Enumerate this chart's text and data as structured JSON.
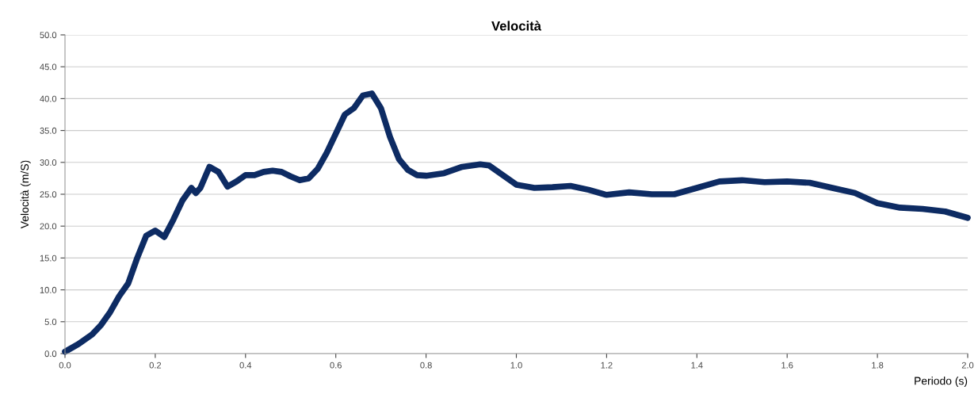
{
  "chart_data": {
    "type": "line",
    "title": "Velocità",
    "xlabel": "Periodo (s)",
    "ylabel": "Velocità (m/S)",
    "xlim": [
      0,
      2
    ],
    "ylim": [
      0,
      50
    ],
    "xticks": [
      {
        "value": 0,
        "label": "0.0"
      },
      {
        "value": 0.2,
        "label": "0.2"
      },
      {
        "value": 0.4,
        "label": "0.4"
      },
      {
        "value": 0.6,
        "label": "0.6"
      },
      {
        "value": 0.8,
        "label": "0.8"
      },
      {
        "value": 1.0,
        "label": "1.0"
      },
      {
        "value": 1.2,
        "label": "1.2"
      },
      {
        "value": 1.4,
        "label": "1.4"
      },
      {
        "value": 1.6,
        "label": "1.6"
      },
      {
        "value": 1.8,
        "label": "1.8"
      },
      {
        "value": 2.0,
        "label": "2.0"
      }
    ],
    "yticks": [
      {
        "value": 0,
        "label": "0.0"
      },
      {
        "value": 5,
        "label": "5.0"
      },
      {
        "value": 10,
        "label": "10.0"
      },
      {
        "value": 15,
        "label": "15.0"
      },
      {
        "value": 20,
        "label": "20.0"
      },
      {
        "value": 25,
        "label": "25.0"
      },
      {
        "value": 30,
        "label": "30.0"
      },
      {
        "value": 35,
        "label": "35.0"
      },
      {
        "value": 40,
        "label": "40.0"
      },
      {
        "value": 45,
        "label": "45.0"
      },
      {
        "value": 50,
        "label": "50.0"
      }
    ],
    "grid": "y",
    "marker": "none",
    "line_style": "solid",
    "series": [
      {
        "color": "#0d2b63",
        "x": [
          0,
          0.03,
          0.06,
          0.08,
          0.1,
          0.12,
          0.14,
          0.16,
          0.18,
          0.2,
          0.22,
          0.24,
          0.26,
          0.28,
          0.29,
          0.3,
          0.32,
          0.34,
          0.36,
          0.38,
          0.4,
          0.42,
          0.44,
          0.46,
          0.48,
          0.5,
          0.52,
          0.54,
          0.56,
          0.58,
          0.6,
          0.62,
          0.64,
          0.66,
          0.68,
          0.7,
          0.72,
          0.74,
          0.76,
          0.78,
          0.8,
          0.84,
          0.88,
          0.92,
          0.94,
          0.96,
          1.0,
          1.04,
          1.08,
          1.12,
          1.16,
          1.2,
          1.25,
          1.3,
          1.35,
          1.4,
          1.45,
          1.5,
          1.55,
          1.6,
          1.65,
          1.7,
          1.75,
          1.8,
          1.85,
          1.9,
          1.95,
          2.0
        ],
        "values": [
          0.3,
          1.5,
          3,
          4.5,
          6.5,
          9,
          11,
          15,
          18.5,
          19.3,
          18.3,
          21,
          24,
          26,
          25.2,
          26,
          29.3,
          28.5,
          26.2,
          27,
          28,
          28,
          28.5,
          28.7,
          28.5,
          27.8,
          27.2,
          27.5,
          29,
          31.5,
          34.5,
          37.5,
          38.5,
          40.5,
          40.8,
          38.5,
          34,
          30.5,
          28.8,
          28,
          27.9,
          28.3,
          29.3,
          29.7,
          29.5,
          28.5,
          26.5,
          26,
          26.1,
          26.3,
          25.7,
          24.9,
          25.3,
          25,
          25,
          26,
          27,
          27.2,
          26.9,
          27,
          26.8,
          26,
          25.2,
          23.6,
          22.9,
          22.7,
          22.3,
          21.3
        ]
      }
    ]
  }
}
